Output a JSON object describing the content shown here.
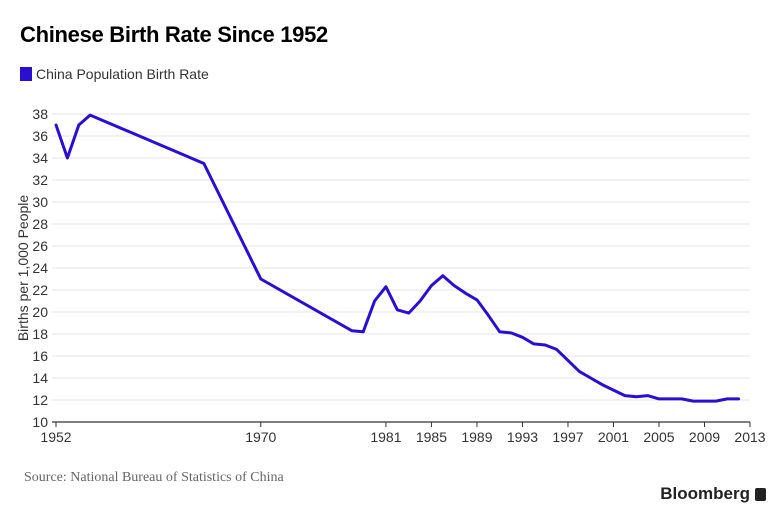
{
  "title": "Chinese Birth Rate Since 1952",
  "source": "Source: National Bureau of Statistics of China",
  "brand": "Bloomberg",
  "colors": {
    "series": "#2a0fd0",
    "grid": "#e6e6e6",
    "axis": "#333333"
  },
  "chart_data": {
    "type": "line",
    "title": "Chinese Birth Rate Since 1952",
    "xlabel": "",
    "ylabel": "Births per 1,000 People",
    "xlim": [
      1952,
      2013
    ],
    "ylim": [
      10,
      38
    ],
    "x_ticks": [
      "1952",
      "1970",
      "1981",
      "1985",
      "1989",
      "1993",
      "1997",
      "2001",
      "2005",
      "2009",
      "2013"
    ],
    "y_ticks": [
      "10",
      "12",
      "14",
      "16",
      "18",
      "20",
      "22",
      "24",
      "26",
      "28",
      "30",
      "32",
      "34",
      "36",
      "38"
    ],
    "grid": true,
    "legend_position": "top-left",
    "series": [
      {
        "name": "China Population Birth Rate",
        "color": "#2a0fd0",
        "points": [
          [
            1952,
            37.0
          ],
          [
            1953,
            34.0
          ],
          [
            1954,
            37.0
          ],
          [
            1955,
            37.9
          ],
          [
            1965,
            33.5
          ],
          [
            1970,
            23.0
          ],
          [
            1978,
            18.3
          ],
          [
            1979,
            18.2
          ],
          [
            1980,
            21.0
          ],
          [
            1981,
            22.3
          ],
          [
            1982,
            20.2
          ],
          [
            1983,
            19.9
          ],
          [
            1984,
            21.0
          ],
          [
            1985,
            22.4
          ],
          [
            1986,
            23.3
          ],
          [
            1987,
            22.4
          ],
          [
            1988,
            21.7
          ],
          [
            1989,
            21.1
          ],
          [
            1990,
            19.7
          ],
          [
            1991,
            18.2
          ],
          [
            1992,
            18.1
          ],
          [
            1993,
            17.7
          ],
          [
            1994,
            17.1
          ],
          [
            1995,
            17.0
          ],
          [
            1996,
            16.6
          ],
          [
            1997,
            15.6
          ],
          [
            1998,
            14.6
          ],
          [
            1999,
            14.0
          ],
          [
            2000,
            13.4
          ],
          [
            2001,
            12.9
          ],
          [
            2002,
            12.4
          ],
          [
            2003,
            12.3
          ],
          [
            2004,
            12.4
          ],
          [
            2005,
            12.1
          ],
          [
            2006,
            12.1
          ],
          [
            2007,
            12.1
          ],
          [
            2008,
            11.9
          ],
          [
            2009,
            11.9
          ],
          [
            2010,
            11.9
          ],
          [
            2011,
            12.1
          ],
          [
            2012,
            12.1
          ]
        ]
      }
    ]
  }
}
